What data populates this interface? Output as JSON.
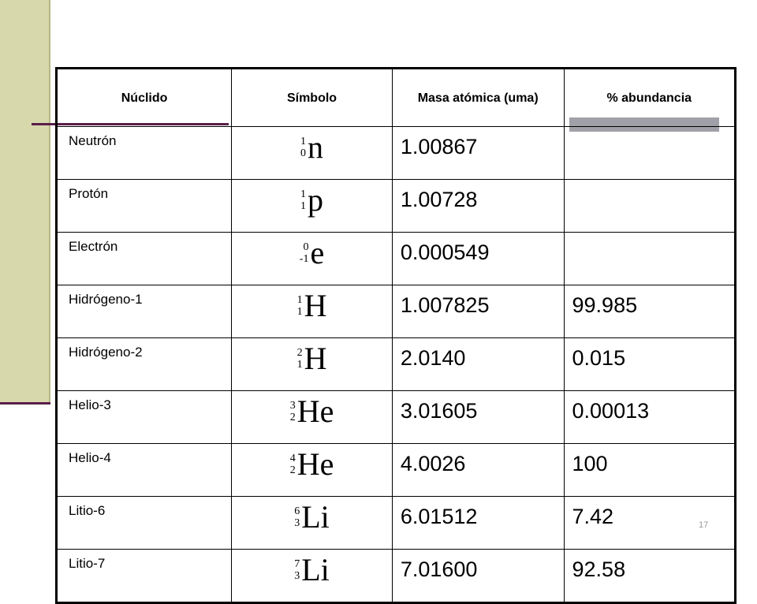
{
  "header": [
    "Núclido",
    "Símbolo",
    "Masa atómica (uma)",
    "% abundancia"
  ],
  "rows": [
    {
      "nuclide": "Neutrón",
      "symbol": {
        "mass": "1",
        "atomic": "0",
        "element": "n"
      },
      "mass": "1.00867"
    },
    {
      "nuclide": "Protón",
      "symbol": {
        "mass": "1",
        "atomic": "1",
        "element": "p"
      },
      "mass": "1.00728"
    },
    {
      "nuclide": "Electrón",
      "symbol": {
        "mass": "0",
        "atomic": "-1",
        "element": "e"
      },
      "mass": "0.000549"
    },
    {
      "nuclide": "Hidrógeno-1",
      "symbol": {
        "mass": "1",
        "atomic": "1",
        "element": "H"
      },
      "mass": "1.007825",
      "abundance": "99.985"
    },
    {
      "nuclide": "Hidrógeno-2",
      "symbol": {
        "mass": "2",
        "atomic": "1",
        "element": "H"
      },
      "mass": "2.0140",
      "abundance": "0.015"
    },
    {
      "nuclide": "Helio-3",
      "symbol": {
        "mass": "3",
        "atomic": "2",
        "element": "He"
      },
      "mass": "3.01605",
      "abundance": "0.00013"
    },
    {
      "nuclide": "Helio-4",
      "symbol": {
        "mass": "4",
        "atomic": "2",
        "element": "He"
      },
      "mass": "4.0026",
      "abundance": "100"
    },
    {
      "nuclide": "Litio-6",
      "symbol": {
        "mass": "6",
        "atomic": "3",
        "element": "Li"
      },
      "mass": "6.01512",
      "abundance": "7.42"
    },
    {
      "nuclide": "Litio-7",
      "symbol": {
        "mass": "7",
        "atomic": "3",
        "element": "Li"
      },
      "mass": "7.01600",
      "abundance": "92.58"
    }
  ],
  "page_number": "17"
}
